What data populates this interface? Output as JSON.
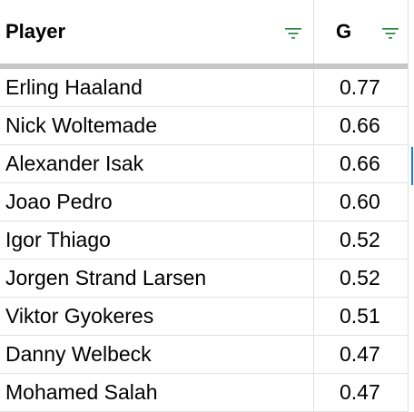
{
  "header": {
    "player_label": "Player",
    "g_label": "G",
    "filter_icon_color": "#188038"
  },
  "rows": [
    {
      "player": "Erling Haaland",
      "g": "0.77"
    },
    {
      "player": "Nick Woltemade",
      "g": "0.66"
    },
    {
      "player": "Alexander Isak",
      "g": "0.66"
    },
    {
      "player": "Joao Pedro",
      "g": "0.60"
    },
    {
      "player": "Igor Thiago",
      "g": "0.52"
    },
    {
      "player": "Jorgen Strand Larsen",
      "g": "0.52"
    },
    {
      "player": "Viktor Gyokeres",
      "g": "0.51"
    },
    {
      "player": "Danny Welbeck",
      "g": "0.47"
    },
    {
      "player": "Mohamed Salah",
      "g": "0.47"
    }
  ],
  "colors": {
    "grid_line": "#e0e0e0",
    "freeze_bar": "#c7c7c7",
    "selection": "#1a73e8"
  }
}
